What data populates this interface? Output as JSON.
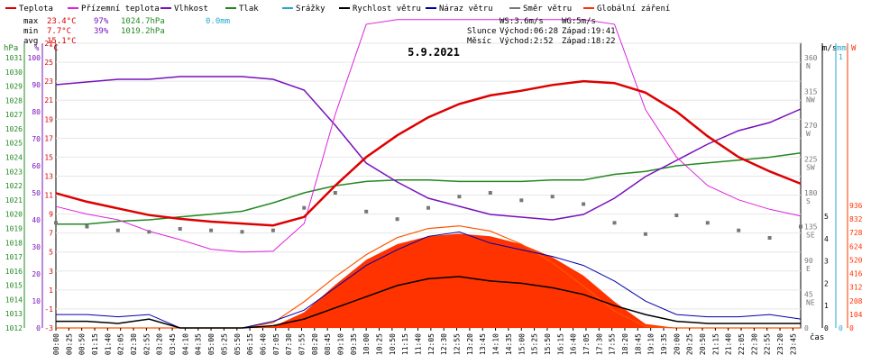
{
  "chart_data": {
    "type": "line",
    "title": "5.9.2021",
    "legend": [
      {
        "name": "Teplota",
        "color": "#dd0000"
      },
      {
        "name": "Přízemní teplota",
        "color": "#dd22dd"
      },
      {
        "name": "Vlhkost",
        "color": "#7711bb"
      },
      {
        "name": "Tlak",
        "color": "#228822"
      },
      {
        "name": "Srážky",
        "color": "#22aacc"
      },
      {
        "name": "Rychlost větru",
        "color": "#000000"
      },
      {
        "name": "Náraz větru",
        "color": "#0000aa"
      },
      {
        "name": "Směr větru",
        "color": "#777777"
      },
      {
        "name": "Globální záření",
        "color": "#ff3300"
      }
    ],
    "stats": {
      "max": {
        "label": "max",
        "temp": "23.4°C",
        "hum": "97%",
        "press": "1024.7hPa",
        "rain": "0.0mm"
      },
      "min": {
        "label": "min",
        "temp": "7.7°C",
        "hum": "39%",
        "press": "1019.2hPa"
      },
      "avg": {
        "label": "avg",
        "temp": "15.1°C"
      }
    },
    "wind_info": {
      "ws": "WS:3.6m/s",
      "wg": "WG:5m/s"
    },
    "sun": {
      "label": "Slunce",
      "rise": "Východ:06:28",
      "set": "Západ:19:41"
    },
    "moon": {
      "label": "Měsíc",
      "rise": "Východ:2:52",
      "set": "Západ:18:22"
    },
    "axes": {
      "hpa": {
        "unit": "hPa",
        "ticks": [
          "1031",
          "1030",
          "1029",
          "1028",
          "1027",
          "1026",
          "1025",
          "1024",
          "1023",
          "1022",
          "1021",
          "1020",
          "1019",
          "1018",
          "1017",
          "1016",
          "1015",
          "1014",
          "1013",
          "1012"
        ]
      },
      "pct": {
        "unit": "%",
        "ticks": [
          "100",
          "90",
          "80",
          "70",
          "60",
          "50",
          "40",
          "30",
          "20",
          "10",
          "0"
        ]
      },
      "temp": {
        "unit": "°C",
        "ticks": [
          "27",
          "25",
          "23",
          "21",
          "19",
          "17",
          "15",
          "13",
          "11",
          "9",
          "7",
          "5",
          "3",
          "1",
          "-1",
          "-3"
        ]
      },
      "ms": {
        "unit": "m/s",
        "ticks": [
          "5",
          "4",
          "3",
          "2",
          "1",
          "0"
        ]
      },
      "mm": {
        "unit": "mm",
        "ticks": [
          "1",
          "0"
        ]
      },
      "dir": {
        "ticks": [
          "360",
          "N",
          "315",
          "NW",
          "270",
          "W",
          "225",
          "SW",
          "180",
          "S",
          "135",
          "SE",
          "90",
          "E",
          "45",
          "NE",
          "0"
        ]
      },
      "w": {
        "unit": "W",
        "ticks": [
          "936",
          "832",
          "728",
          "624",
          "520",
          "416",
          "312",
          "208",
          "104",
          "0"
        ]
      },
      "x_label": "čas",
      "x_ticks": [
        "00:00",
        "00:25",
        "00:50",
        "01:15",
        "01:40",
        "02:05",
        "02:30",
        "02:55",
        "03:20",
        "03:45",
        "04:10",
        "04:35",
        "05:00",
        "05:25",
        "05:50",
        "06:15",
        "06:40",
        "07:05",
        "07:30",
        "07:55",
        "08:20",
        "08:45",
        "09:10",
        "09:35",
        "10:00",
        "10:25",
        "10:50",
        "11:15",
        "11:40",
        "12:05",
        "12:30",
        "12:55",
        "13:20",
        "13:45",
        "14:10",
        "14:35",
        "15:00",
        "15:25",
        "15:50",
        "16:15",
        "16:40",
        "17:05",
        "17:30",
        "17:55",
        "18:20",
        "18:45",
        "19:10",
        "19:35",
        "20:00",
        "20:25",
        "20:50",
        "21:15",
        "21:40",
        "22:05",
        "22:30",
        "22:55",
        "23:20",
        "23:45"
      ]
    },
    "x": [
      0,
      1,
      2,
      3,
      4,
      5,
      6,
      7,
      8,
      9,
      10,
      11,
      12,
      13,
      14,
      15,
      16,
      17,
      18,
      19,
      20,
      21,
      22,
      23,
      24
    ],
    "series": [
      {
        "name": "Teplota",
        "unit": "°C",
        "values": [
          11.2,
          10.3,
          9.6,
          8.9,
          8.5,
          8.2,
          8.0,
          7.8,
          8.7,
          12.0,
          15.0,
          17.3,
          19.2,
          20.6,
          21.5,
          22.0,
          22.6,
          23.0,
          22.8,
          21.8,
          19.8,
          17.2,
          15.0,
          13.5,
          12.2
        ]
      },
      {
        "name": "Přízemní teplota",
        "unit": "°C",
        "values": [
          9.8,
          9.0,
          8.4,
          7.2,
          6.3,
          5.3,
          5.0,
          5.1,
          8.0,
          19.5,
          29.0,
          29.5,
          29.5,
          29.5,
          29.5,
          29.5,
          29.5,
          29.5,
          29.0,
          20.0,
          15.0,
          12.0,
          10.5,
          9.5,
          8.8
        ]
      },
      {
        "name": "Vlhkost",
        "unit": "%",
        "values": [
          90,
          91,
          92,
          92,
          93,
          93,
          93,
          92,
          88,
          75,
          61,
          54,
          48,
          45,
          42,
          41,
          40,
          42,
          48,
          56,
          62,
          68,
          73,
          76,
          81
        ]
      },
      {
        "name": "Tlak",
        "unit": "hPa",
        "values": [
          1019.3,
          1019.3,
          1019.5,
          1019.6,
          1019.8,
          1020.0,
          1020.2,
          1020.8,
          1021.5,
          1022.0,
          1022.3,
          1022.4,
          1022.4,
          1022.3,
          1022.3,
          1022.3,
          1022.4,
          1022.4,
          1022.8,
          1023.0,
          1023.4,
          1023.6,
          1023.8,
          1024.0,
          1024.3
        ]
      },
      {
        "name": "Rychlost větru",
        "unit": "m/s",
        "values": [
          0.3,
          0.3,
          0.2,
          0.4,
          0.0,
          0.0,
          0.0,
          0.1,
          0.4,
          0.9,
          1.4,
          1.9,
          2.2,
          2.3,
          2.1,
          2.0,
          1.8,
          1.5,
          1.0,
          0.6,
          0.3,
          0.2,
          0.2,
          0.2,
          0.2
        ]
      },
      {
        "name": "Náraz větru",
        "unit": "m/s",
        "values": [
          0.6,
          0.6,
          0.5,
          0.6,
          0.0,
          0.0,
          0.0,
          0.3,
          0.8,
          1.8,
          2.8,
          3.5,
          4.1,
          4.3,
          3.8,
          3.5,
          3.2,
          2.8,
          2.1,
          1.2,
          0.6,
          0.5,
          0.5,
          0.6,
          0.4
        ]
      },
      {
        "name": "Směr větru",
        "unit": "°",
        "values": [
          140,
          135,
          130,
          128,
          132,
          130,
          128,
          130,
          160,
          180,
          155,
          145,
          160,
          175,
          180,
          170,
          175,
          165,
          140,
          125,
          150,
          140,
          130,
          120,
          135
        ]
      },
      {
        "name": "Globální záření",
        "unit": "W/m²",
        "values": [
          0,
          0,
          0,
          0,
          0,
          0,
          0,
          10,
          120,
          330,
          520,
          640,
          700,
          720,
          700,
          640,
          540,
          400,
          200,
          30,
          0,
          0,
          0,
          0,
          0
        ]
      },
      {
        "name": "Teoretické záření",
        "unit": "W/m²",
        "values": [
          0,
          0,
          0,
          0,
          0,
          0,
          0,
          40,
          200,
          390,
          560,
          690,
          760,
          780,
          740,
          640,
          500,
          320,
          130,
          10,
          0,
          0,
          0,
          0,
          0
        ]
      }
    ]
  }
}
